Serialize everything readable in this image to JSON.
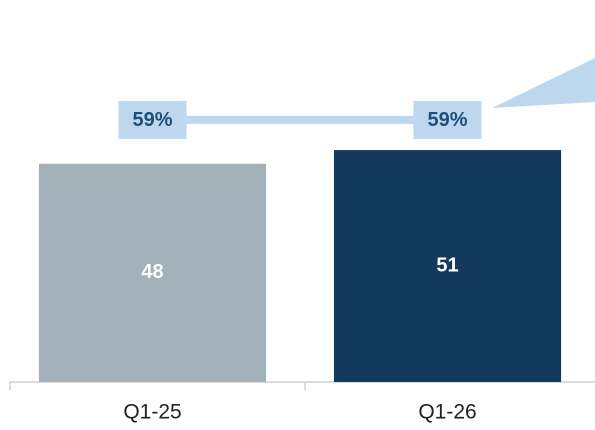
{
  "chart_data": {
    "type": "bar",
    "categories": [
      "Q1-25",
      "Q1-26"
    ],
    "ylim": [
      0,
      84
    ],
    "y2lim": [
      0,
      86
    ],
    "series": [
      {
        "type": "bar",
        "colors": [
          "#a3b1bb",
          "#133a5c"
        ],
        "values": [
          48,
          51
        ]
      },
      {
        "type": "line",
        "axis": "y2",
        "color": "#bdd7ee",
        "values": [
          59,
          59
        ],
        "value_labels": [
          "59%",
          "59%"
        ]
      }
    ]
  }
}
